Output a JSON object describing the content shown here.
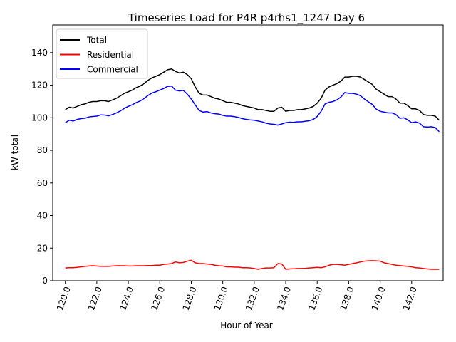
{
  "chart_data": {
    "type": "line",
    "title": "Timeseries Load for P4R p4rhs1_1247  Day 6",
    "xlabel": "Hour of Year",
    "ylabel": "kW total",
    "xlim": [
      119.2,
      144.0
    ],
    "ylim": [
      0,
      157
    ],
    "xticks": [
      120,
      122,
      124,
      126,
      128,
      130,
      132,
      134,
      136,
      138,
      140,
      142
    ],
    "xtick_labels": [
      "120.0",
      "122.0",
      "124.0",
      "126.0",
      "128.0",
      "130.0",
      "132.0",
      "134.0",
      "136.0",
      "138.0",
      "140.0",
      "142.0"
    ],
    "yticks": [
      0,
      20,
      40,
      60,
      80,
      100,
      120,
      140
    ],
    "ytick_labels": [
      "0",
      "20",
      "40",
      "60",
      "80",
      "100",
      "120",
      "140"
    ],
    "x_tick_rotation": "70deg",
    "grid": false,
    "legend_position": "top-left",
    "x": [
      120.0,
      120.25,
      120.5,
      120.75,
      121.0,
      121.25,
      121.5,
      121.75,
      122.0,
      122.25,
      122.5,
      122.75,
      123.0,
      123.25,
      123.5,
      123.75,
      124.0,
      124.25,
      124.5,
      124.75,
      125.0,
      125.25,
      125.5,
      125.75,
      126.0,
      126.25,
      126.5,
      126.75,
      127.0,
      127.25,
      127.5,
      127.75,
      128.0,
      128.25,
      128.5,
      128.75,
      129.0,
      129.25,
      129.5,
      129.75,
      130.0,
      130.25,
      130.5,
      130.75,
      131.0,
      131.25,
      131.5,
      131.75,
      132.0,
      132.25,
      132.5,
      132.75,
      133.0,
      133.25,
      133.5,
      133.75,
      134.0,
      134.25,
      134.5,
      134.75,
      135.0,
      135.25,
      135.5,
      135.75,
      136.0,
      136.25,
      136.5,
      136.75,
      137.0,
      137.25,
      137.5,
      137.75,
      138.0,
      138.25,
      138.5,
      138.75,
      139.0,
      139.25,
      139.5,
      139.75,
      140.0,
      140.25,
      140.5,
      140.75,
      141.0,
      141.25,
      141.5,
      141.75,
      142.0,
      142.25,
      142.5,
      142.75,
      143.0,
      143.25,
      143.5,
      143.75
    ],
    "series": [
      {
        "name": "Total",
        "color": "#000000",
        "values": [
          105.0,
          106.5,
          106.0,
          107.0,
          108.0,
          108.5,
          109.5,
          110.0,
          110.0,
          110.5,
          110.5,
          110.0,
          111.0,
          112.0,
          113.5,
          115.0,
          116.0,
          117.0,
          118.5,
          119.5,
          121.0,
          123.0,
          124.5,
          125.5,
          126.5,
          128.0,
          129.5,
          130.0,
          128.5,
          127.5,
          128.0,
          126.5,
          124.0,
          119.0,
          115.0,
          114.0,
          114.0,
          113.0,
          112.0,
          111.5,
          110.5,
          109.5,
          109.5,
          109.0,
          108.5,
          107.5,
          107.0,
          106.5,
          106.0,
          105.0,
          105.0,
          104.5,
          104.0,
          104.0,
          106.0,
          106.5,
          104.0,
          104.5,
          104.5,
          105.0,
          105.0,
          105.5,
          106.0,
          107.0,
          109.0,
          112.0,
          117.0,
          119.0,
          120.0,
          121.0,
          122.5,
          125.0,
          125.0,
          125.5,
          125.5,
          125.0,
          123.5,
          122.0,
          120.5,
          117.5,
          116.0,
          114.5,
          113.0,
          113.0,
          111.5,
          109.0,
          109.0,
          107.5,
          105.5,
          105.5,
          104.5,
          102.0,
          101.5,
          101.5,
          101.0,
          98.5
        ]
      },
      {
        "name": "Residential",
        "color": "#ff0000",
        "values": [
          7.8,
          8.0,
          8.0,
          8.2,
          8.5,
          8.8,
          9.0,
          9.2,
          9.0,
          8.8,
          8.8,
          8.8,
          9.0,
          9.2,
          9.2,
          9.2,
          9.0,
          9.0,
          9.2,
          9.2,
          9.2,
          9.3,
          9.3,
          9.5,
          9.5,
          10.0,
          10.2,
          10.5,
          11.5,
          11.0,
          11.2,
          12.0,
          12.5,
          11.0,
          10.5,
          10.5,
          10.2,
          10.0,
          9.5,
          9.2,
          9.0,
          8.5,
          8.5,
          8.3,
          8.3,
          8.0,
          8.0,
          7.8,
          7.5,
          7.0,
          7.5,
          7.8,
          7.8,
          8.0,
          10.5,
          10.3,
          7.0,
          7.2,
          7.3,
          7.5,
          7.5,
          7.6,
          7.8,
          8.0,
          8.2,
          8.0,
          8.5,
          9.5,
          10.0,
          10.0,
          9.8,
          9.5,
          10.0,
          10.5,
          11.0,
          11.5,
          12.0,
          12.2,
          12.3,
          12.2,
          12.0,
          11.0,
          10.5,
          10.0,
          9.5,
          9.3,
          9.0,
          8.8,
          8.5,
          8.0,
          7.8,
          7.5,
          7.2,
          7.0,
          7.0,
          7.0
        ]
      },
      {
        "name": "Commercial",
        "color": "#0000ff",
        "values": [
          97.0,
          98.5,
          98.0,
          99.0,
          99.5,
          99.7,
          100.5,
          100.8,
          101.0,
          101.8,
          101.7,
          101.2,
          102.0,
          103.0,
          104.2,
          105.8,
          107.0,
          108.0,
          109.3,
          110.3,
          111.8,
          113.7,
          115.2,
          116.0,
          117.0,
          118.0,
          119.3,
          119.5,
          117.0,
          116.5,
          116.8,
          114.5,
          111.5,
          108.0,
          104.5,
          103.5,
          103.8,
          103.0,
          102.5,
          102.3,
          101.5,
          101.0,
          101.0,
          100.7,
          100.2,
          99.5,
          99.0,
          98.7,
          98.5,
          98.0,
          97.5,
          96.7,
          96.2,
          96.0,
          95.5,
          96.2,
          97.0,
          97.3,
          97.2,
          97.5,
          97.5,
          97.9,
          98.2,
          99.0,
          100.8,
          104.0,
          108.5,
          109.5,
          110.0,
          111.0,
          112.7,
          115.5,
          115.0,
          115.0,
          114.5,
          113.5,
          111.5,
          109.8,
          108.2,
          105.3,
          104.0,
          103.5,
          103.0,
          103.0,
          102.0,
          99.7,
          100.0,
          98.7,
          97.0,
          97.5,
          96.7,
          94.5,
          94.3,
          94.5,
          94.0,
          91.5
        ]
      }
    ]
  }
}
